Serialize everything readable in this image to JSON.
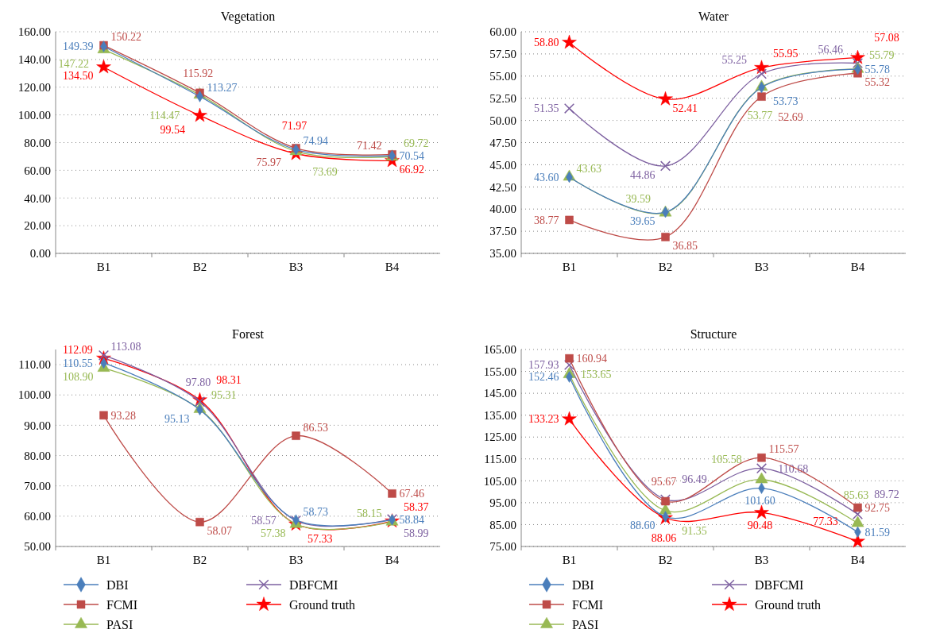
{
  "chart_data": [
    {
      "type": "line",
      "title": "Vegetation",
      "categories": [
        "B1",
        "B2",
        "B3",
        "B4"
      ],
      "ylim": [
        0,
        160
      ],
      "yticks": [
        {
          "value": 0,
          "label": "0.00"
        },
        {
          "value": 20,
          "label": "20.00"
        },
        {
          "value": 40,
          "label": "40.00"
        },
        {
          "value": 60,
          "label": "60.00"
        },
        {
          "value": 80,
          "label": "80.00"
        },
        {
          "value": 100,
          "label": "100.00"
        },
        {
          "value": 120,
          "label": "120.00"
        },
        {
          "value": 140,
          "label": "140.00"
        },
        {
          "value": 160,
          "label": "160.00"
        }
      ],
      "grid": "y",
      "legend": false,
      "series": [
        {
          "color": "#4a7ebb",
          "marker": "diamond",
          "values": [
            149.39,
            113.27,
            74.94,
            70.54
          ],
          "value_labels": [
            "149.39",
            "113.27",
            "74.94",
            "70.54"
          ]
        },
        {
          "color": "#be4b48",
          "marker": "square",
          "values": [
            150.22,
            115.92,
            75.97,
            71.42
          ],
          "value_labels": [
            "150.22",
            "115.92",
            "75.97",
            "71.42"
          ]
        },
        {
          "color": "#98b954",
          "marker": "triangle",
          "values": [
            147.22,
            114.47,
            73.69,
            69.72
          ],
          "value_labels": [
            "147.22",
            "114.47",
            "73.69",
            "69.72"
          ]
        },
        {
          "color": "#ff0000",
          "marker": "star",
          "values": [
            134.5,
            99.54,
            71.97,
            66.92
          ],
          "value_labels": [
            "134.50",
            "99.54",
            "71.97",
            "66.92"
          ]
        }
      ]
    },
    {
      "type": "line",
      "title": "Water",
      "categories": [
        "B1",
        "B2",
        "B3",
        "B4"
      ],
      "ylim": [
        35,
        60
      ],
      "yticks": [
        {
          "value": 35,
          "label": "35.00"
        },
        {
          "value": 37.5,
          "label": "37.50"
        },
        {
          "value": 40,
          "label": "40.00"
        },
        {
          "value": 42.5,
          "label": "42.50"
        },
        {
          "value": 45,
          "label": "45.00"
        },
        {
          "value": 47.5,
          "label": "47.50"
        },
        {
          "value": 50,
          "label": "50.00"
        },
        {
          "value": 52.5,
          "label": "52.50"
        },
        {
          "value": 55,
          "label": "55.00"
        },
        {
          "value": 57.5,
          "label": "57.50"
        },
        {
          "value": 60,
          "label": "60.00"
        }
      ],
      "grid": "y",
      "legend": false,
      "series": [
        {
          "color": "#4a7ebb",
          "marker": "diamond",
          "values": [
            43.6,
            39.65,
            53.73,
            55.78
          ],
          "value_labels": [
            "43.60",
            "39.65",
            "53.73",
            "55.78"
          ]
        },
        {
          "color": "#be4b48",
          "marker": "square",
          "values": [
            38.77,
            36.85,
            52.69,
            55.32
          ],
          "value_labels": [
            "38.77",
            "36.85",
            "52.69",
            "55.32"
          ]
        },
        {
          "color": "#98b954",
          "marker": "triangle",
          "values": [
            43.63,
            39.59,
            53.77,
            55.79
          ],
          "value_labels": [
            "43.63",
            "39.59",
            "53.77",
            "55.79"
          ]
        },
        {
          "color": "#7d60a0",
          "marker": "cross",
          "values": [
            51.35,
            44.86,
            55.25,
            56.46
          ],
          "value_labels": [
            "51.35",
            "44.86",
            "55.25",
            "56.46"
          ]
        },
        {
          "color": "#ff0000",
          "marker": "star",
          "values": [
            58.8,
            52.41,
            55.95,
            57.08
          ],
          "value_labels": [
            "58.80",
            "52.41",
            "55.95",
            "57.08"
          ]
        }
      ]
    },
    {
      "type": "line",
      "title": "Forest",
      "categories": [
        "B1",
        "B2",
        "B3",
        "B4"
      ],
      "ylim": [
        50,
        115
      ],
      "yticks": [
        {
          "value": 50,
          "label": "50.00"
        },
        {
          "value": 60,
          "label": "60.00"
        },
        {
          "value": 70,
          "label": "70.00"
        },
        {
          "value": 80,
          "label": "80.00"
        },
        {
          "value": 90,
          "label": "90.00"
        },
        {
          "value": 100,
          "label": "100.00"
        },
        {
          "value": 110,
          "label": "110.00"
        }
      ],
      "grid": "y",
      "legend": "bottom",
      "series": [
        {
          "name": "DBI",
          "color": "#4a7ebb",
          "marker": "diamond",
          "values": [
            110.55,
            95.13,
            58.73,
            58.84
          ],
          "value_labels": [
            "110.55",
            "95.13",
            "58.73",
            "58.84"
          ]
        },
        {
          "name": "FCMI",
          "color": "#be4b48",
          "marker": "square",
          "values": [
            93.28,
            58.07,
            86.53,
            67.46
          ],
          "value_labels": [
            "93.28",
            "58.07",
            "86.53",
            "67.46"
          ]
        },
        {
          "name": "PASI",
          "color": "#98b954",
          "marker": "triangle",
          "values": [
            108.9,
            95.31,
            57.38,
            58.15
          ],
          "value_labels": [
            "108.90",
            "95.31",
            "57.38",
            "58.15"
          ]
        },
        {
          "name": "DBFCMI",
          "color": "#7d60a0",
          "marker": "cross",
          "values": [
            113.08,
            97.8,
            58.57,
            58.99
          ],
          "value_labels": [
            "113.08",
            "97.80",
            "58.57",
            "58.99"
          ]
        },
        {
          "name": "Ground truth",
          "color": "#ff0000",
          "marker": "star",
          "values": [
            112.09,
            98.31,
            57.33,
            58.37
          ],
          "value_labels": [
            "112.09",
            "98.31",
            "57.33",
            "58.37"
          ]
        }
      ]
    },
    {
      "type": "line",
      "title": "Structure",
      "categories": [
        "B1",
        "B2",
        "B3",
        "B4"
      ],
      "ylim": [
        75,
        165
      ],
      "yticks": [
        {
          "value": 75,
          "label": "75.00"
        },
        {
          "value": 85,
          "label": "85.00"
        },
        {
          "value": 95,
          "label": "95.00"
        },
        {
          "value": 105,
          "label": "105.00"
        },
        {
          "value": 115,
          "label": "115.00"
        },
        {
          "value": 125,
          "label": "125.00"
        },
        {
          "value": 135,
          "label": "135.00"
        },
        {
          "value": 145,
          "label": "145.00"
        },
        {
          "value": 155,
          "label": "155.00"
        },
        {
          "value": 165,
          "label": "165.00"
        }
      ],
      "grid": "y",
      "legend": "bottom",
      "series": [
        {
          "name": "DBI",
          "color": "#4a7ebb",
          "marker": "diamond",
          "values": [
            152.46,
            88.6,
            101.6,
            81.59
          ],
          "value_labels": [
            "152.46",
            "88.60",
            "101.60",
            "81.59"
          ]
        },
        {
          "name": "FCMI",
          "color": "#be4b48",
          "marker": "square",
          "values": [
            160.94,
            95.67,
            115.57,
            92.75
          ],
          "value_labels": [
            "160.94",
            "95.67",
            "115.57",
            "92.75"
          ]
        },
        {
          "name": "PASI",
          "color": "#98b954",
          "marker": "triangle",
          "values": [
            153.65,
            91.35,
            105.58,
            85.63
          ],
          "value_labels": [
            "153.65",
            "91.35",
            "105.58",
            "85.63"
          ]
        },
        {
          "name": "DBFCMI",
          "color": "#7d60a0",
          "marker": "cross",
          "values": [
            157.93,
            96.49,
            110.68,
            89.72
          ],
          "value_labels": [
            "157.93",
            "96.49",
            "110.68",
            "89.72"
          ]
        },
        {
          "name": "Ground truth",
          "color": "#ff0000",
          "marker": "star",
          "values": [
            133.23,
            88.06,
            90.48,
            77.33
          ],
          "value_labels": [
            "133.23",
            "88.06",
            "90.48",
            "77.33"
          ]
        }
      ]
    }
  ]
}
